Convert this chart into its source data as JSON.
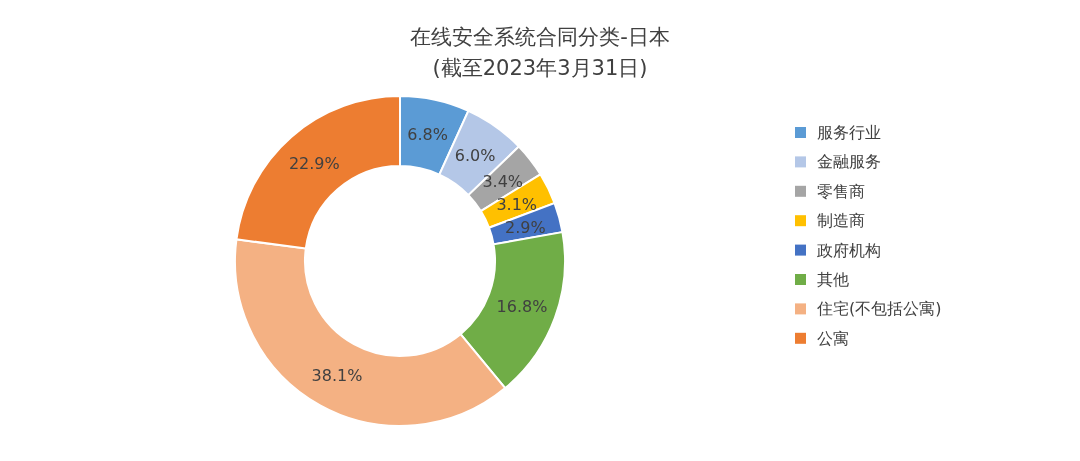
{
  "chart_data": {
    "type": "donut",
    "title": "在线安全系统合同分类-日本",
    "subtitle": "(截至2023年3月31日)",
    "categories": [
      "服务行业",
      "金融服务",
      "零售商",
      "制造商",
      "政府机构",
      "其他",
      "住宅(不包括公寓)",
      "公寓"
    ],
    "values": [
      6.8,
      6.0,
      3.4,
      3.1,
      2.9,
      16.8,
      38.1,
      22.9
    ],
    "value_labels": [
      "6.8%",
      "6.0%",
      "3.4%",
      "3.1%",
      "2.9%",
      "16.8%",
      "38.1%",
      "22.9%"
    ],
    "colors": [
      "#5b9bd5",
      "#b4c7e7",
      "#a5a5a5",
      "#ffc000",
      "#4472c4",
      "#70ad47",
      "#f4b183",
      "#ed7d31"
    ],
    "legend": "right"
  }
}
